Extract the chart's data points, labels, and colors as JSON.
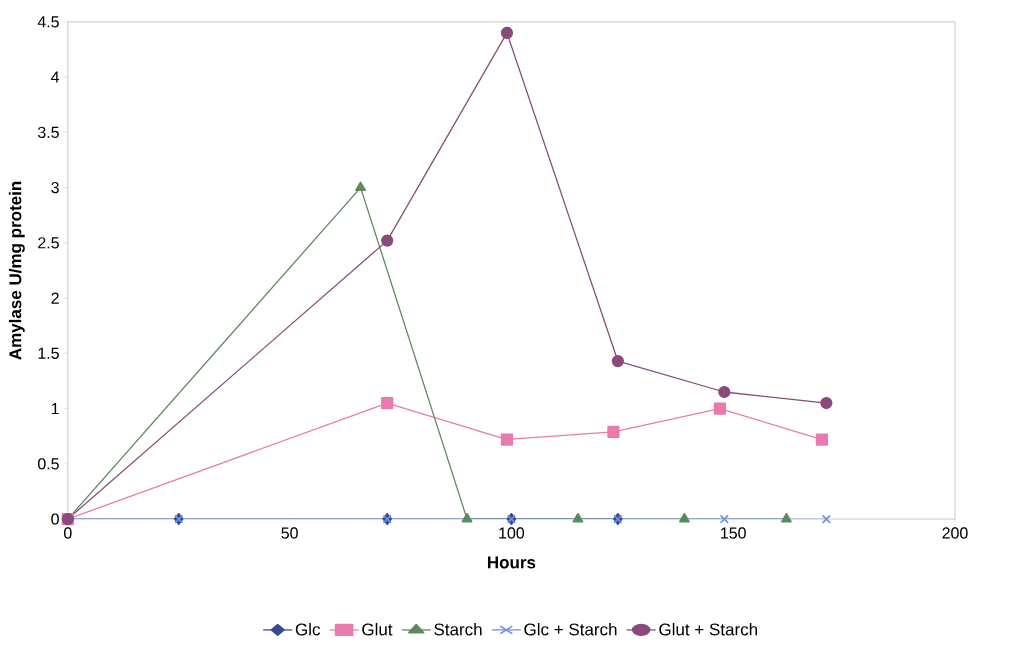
{
  "chart_data": {
    "type": "line",
    "xlabel": "Hours",
    "ylabel": "Amylase U/mg protein",
    "xlim": [
      0,
      200
    ],
    "xticks": [
      0,
      50,
      100,
      150,
      200
    ],
    "ylim": [
      0,
      4.5
    ],
    "yticks": [
      0,
      0.5,
      1,
      1.5,
      2,
      2.5,
      3,
      3.5,
      4,
      4.5
    ],
    "grid": false,
    "legend": "bottom",
    "series": [
      {
        "name": "Glc",
        "color": "#3a4a8c",
        "marker": "diamond",
        "x": [
          0,
          25,
          72,
          100,
          124
        ],
        "values": [
          0,
          0,
          0,
          0,
          0
        ]
      },
      {
        "name": "Glut",
        "color": "#e87ab0",
        "marker": "square",
        "x": [
          0,
          72,
          99,
          123,
          147,
          170
        ],
        "values": [
          0,
          1.05,
          0.72,
          0.79,
          1.0,
          0.72
        ]
      },
      {
        "name": "Starch",
        "color": "#5c8a5c",
        "marker": "triangle",
        "x": [
          0,
          66,
          90,
          115,
          139,
          162
        ],
        "values": [
          0,
          3.0,
          0,
          0,
          0,
          0
        ]
      },
      {
        "name": "Glc + Starch",
        "color": "#6f8fe0",
        "marker": "cross",
        "x": [
          0,
          25,
          72,
          100,
          124,
          148,
          171
        ],
        "values": [
          0,
          0,
          0,
          0,
          0,
          0,
          0
        ]
      },
      {
        "name": "Glut + Starch",
        "color": "#8a4a7a",
        "marker": "circle",
        "x": [
          0,
          72,
          99,
          124,
          148,
          171
        ],
        "values": [
          0,
          2.52,
          4.4,
          1.43,
          1.15,
          1.05
        ]
      }
    ]
  }
}
